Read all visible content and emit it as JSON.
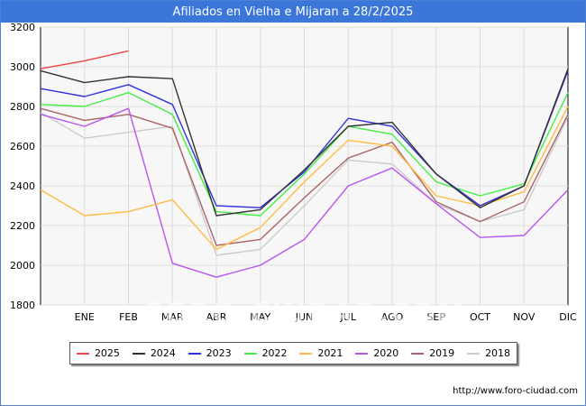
{
  "title": "Afiliados en Vielha e Mijaran a 28/2/2025",
  "source": "http://www.foro-ciudad.com",
  "watermark": "FORO-CIUDAD.COM",
  "colors": {
    "title_bg": "#3b76d9",
    "plot_bg": "#f7f7f7",
    "grid": "#dddddd"
  },
  "chart_data": {
    "type": "line",
    "title": "Afiliados en Vielha e Mijaran a 28/2/2025",
    "categories": [
      "",
      "ENE",
      "FEB",
      "MAR",
      "ABR",
      "MAY",
      "JUN",
      "JUL",
      "AGO",
      "SEP",
      "OCT",
      "NOV",
      "DIC"
    ],
    "ylim": [
      1800,
      3200
    ],
    "yticks": [
      1800,
      2000,
      2200,
      2400,
      2600,
      2800,
      3000,
      3200
    ],
    "grid": true,
    "legend_position": "bottom",
    "series": [
      {
        "name": "2025",
        "color": "#ee4444",
        "values": [
          2990,
          3030,
          3080,
          null,
          null,
          null,
          null,
          null,
          null,
          null,
          null,
          null,
          null
        ]
      },
      {
        "name": "2024",
        "color": "#333333",
        "values": [
          2980,
          2920,
          2950,
          2940,
          2250,
          2280,
          2480,
          2700,
          2720,
          2460,
          2290,
          2400,
          2990
        ]
      },
      {
        "name": "2023",
        "color": "#3333dd",
        "values": [
          2890,
          2850,
          2910,
          2810,
          2300,
          2290,
          2470,
          2740,
          2700,
          2460,
          2300,
          2400,
          2980
        ]
      },
      {
        "name": "2022",
        "color": "#44ee44",
        "values": [
          2810,
          2800,
          2870,
          2760,
          2270,
          2250,
          2460,
          2700,
          2660,
          2420,
          2350,
          2410,
          2870
        ]
      },
      {
        "name": "2021",
        "color": "#ffbb44",
        "values": [
          2380,
          2250,
          2270,
          2330,
          2080,
          2190,
          2420,
          2630,
          2600,
          2350,
          2300,
          2370,
          2800
        ]
      },
      {
        "name": "2020",
        "color": "#bb55ee",
        "values": [
          2760,
          2700,
          2790,
          2010,
          1940,
          2000,
          2130,
          2400,
          2490,
          2310,
          2140,
          2150,
          2380
        ]
      },
      {
        "name": "2019",
        "color": "#aa6666",
        "values": [
          2790,
          2730,
          2760,
          2690,
          2100,
          2130,
          2340,
          2540,
          2620,
          2320,
          2220,
          2320,
          2760
        ]
      },
      {
        "name": "2018",
        "color": "#cccccc",
        "values": [
          2770,
          2640,
          2670,
          2700,
          2050,
          2080,
          2300,
          2530,
          2510,
          2310,
          2220,
          2280,
          2750
        ]
      }
    ]
  }
}
